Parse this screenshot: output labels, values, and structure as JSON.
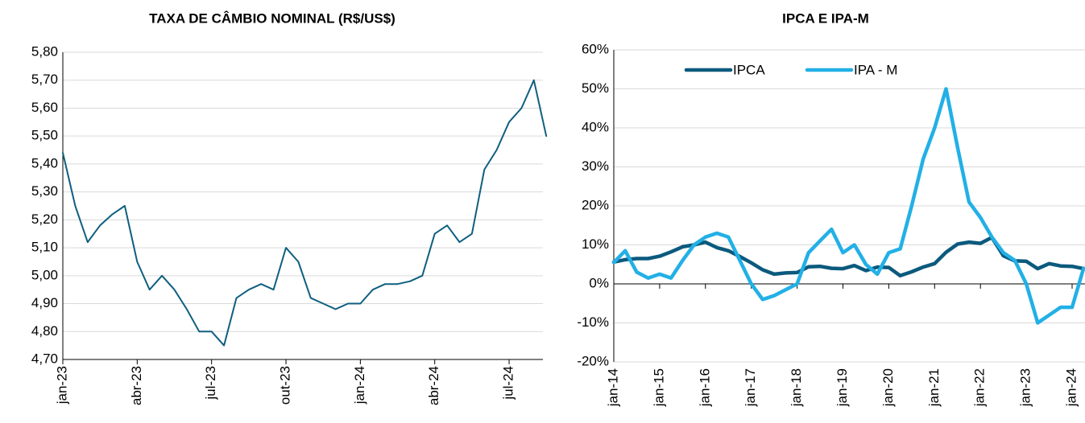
{
  "chart_data": [
    {
      "type": "line",
      "title": "TAXA DE CÂMBIO NOMINAL (R$/US$)",
      "categories": [
        "jan-23",
        null,
        null,
        null,
        null,
        null,
        "abr-23",
        null,
        null,
        null,
        null,
        null,
        "jul-23",
        null,
        null,
        null,
        null,
        null,
        "out-23",
        null,
        null,
        null,
        null,
        null,
        "jan-24",
        null,
        null,
        null,
        null,
        null,
        "abr-24",
        null,
        null,
        null,
        null,
        null,
        "jul-24",
        null,
        null,
        null
      ],
      "series": [
        {
          "name": null,
          "color": "#0f5f80",
          "values": [
            5.44,
            5.25,
            5.12,
            5.18,
            5.22,
            5.25,
            5.05,
            4.95,
            5.0,
            4.95,
            4.88,
            4.8,
            4.8,
            4.75,
            4.92,
            4.95,
            4.97,
            4.95,
            5.1,
            5.05,
            4.92,
            4.9,
            4.88,
            4.9,
            4.9,
            4.95,
            4.97,
            4.97,
            4.98,
            5.0,
            5.15,
            5.18,
            5.12,
            5.15,
            5.38,
            5.45,
            5.55,
            5.6,
            5.7,
            5.5
          ]
        }
      ],
      "ylim": [
        4.7,
        5.8
      ],
      "yticks": [
        {
          "value": 4.7,
          "label": "4,70"
        },
        {
          "value": 4.8,
          "label": "4,80"
        },
        {
          "value": 4.9,
          "label": "4,90"
        },
        {
          "value": 5.0,
          "label": "5,00"
        },
        {
          "value": 5.1,
          "label": "5,10"
        },
        {
          "value": 5.2,
          "label": "5,20"
        },
        {
          "value": 5.3,
          "label": "5,30"
        },
        {
          "value": 5.4,
          "label": "5,40"
        },
        {
          "value": 5.5,
          "label": "5,50"
        },
        {
          "value": 5.6,
          "label": "5,60"
        },
        {
          "value": 5.7,
          "label": "5,70"
        },
        {
          "value": 5.8,
          "label": "5,80"
        }
      ],
      "grid": true
    },
    {
      "type": "line",
      "title": "IPCA E IPA-M",
      "categories": [
        "jan-14",
        null,
        null,
        null,
        "jan-15",
        null,
        null,
        null,
        "jan-16",
        null,
        null,
        null,
        "jan-17",
        null,
        null,
        null,
        "jan-18",
        null,
        null,
        null,
        "jan-19",
        null,
        null,
        null,
        "jan-20",
        null,
        null,
        null,
        "jan-21",
        null,
        null,
        null,
        "jan-22",
        null,
        null,
        null,
        "jan-23",
        null,
        null,
        null,
        "jan-24",
        null
      ],
      "series": [
        {
          "name": "IPCA",
          "color": "#0b5a7d",
          "values": [
            5.6,
            6.2,
            6.5,
            6.5,
            7.1,
            8.2,
            9.5,
            10.0,
            10.7,
            9.3,
            8.5,
            7.0,
            5.4,
            3.6,
            2.5,
            2.8,
            2.9,
            4.4,
            4.5,
            4.0,
            3.9,
            4.7,
            3.4,
            4.3,
            4.2,
            2.1,
            3.1,
            4.3,
            5.2,
            8.1,
            10.2,
            10.7,
            10.4,
            11.9,
            7.2,
            5.9,
            5.8,
            3.9,
            5.2,
            4.6,
            4.5,
            3.9
          ]
        },
        {
          "name": "IPA - M",
          "color": "#22b0e6",
          "values": [
            5.5,
            8.5,
            3.0,
            1.5,
            2.5,
            1.5,
            6.0,
            10.0,
            12.0,
            13.0,
            12.0,
            6.0,
            0.0,
            -4.0,
            -3.0,
            -1.5,
            0.0,
            8.0,
            11.0,
            14.0,
            8.0,
            10.0,
            5.0,
            2.5,
            8.0,
            9.0,
            20.0,
            32.0,
            40.0,
            50.0,
            35.0,
            21.0,
            17.0,
            12.0,
            8.0,
            6.0,
            0.0,
            -10.0,
            -8.0,
            -6.0,
            -6.0,
            4.0
          ]
        }
      ],
      "ylim": [
        -20,
        60
      ],
      "yticks": [
        {
          "value": -20,
          "label": "-20%"
        },
        {
          "value": -10,
          "label": "-10%"
        },
        {
          "value": 0,
          "label": "0%"
        },
        {
          "value": 10,
          "label": "10%"
        },
        {
          "value": 20,
          "label": "20%"
        },
        {
          "value": 30,
          "label": "30%"
        },
        {
          "value": 40,
          "label": "40%"
        },
        {
          "value": 50,
          "label": "50%"
        },
        {
          "value": 60,
          "label": "60%"
        }
      ],
      "grid": true,
      "legend": "top"
    }
  ]
}
